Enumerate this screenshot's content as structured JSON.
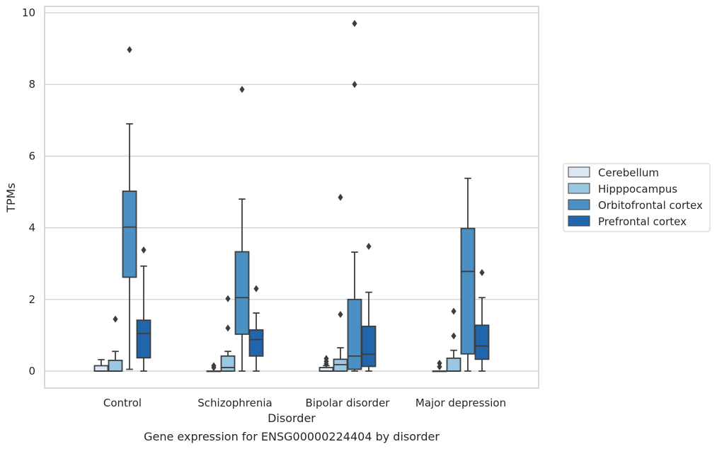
{
  "caption": "Gene expression for ENSG00000224404 by disorder",
  "chart_data": {
    "type": "box",
    "title": "",
    "xlabel": "Disorder",
    "ylabel": "TPMs",
    "ylim": [
      -0.45,
      10.2
    ],
    "yticks": [
      0,
      2,
      4,
      6,
      8,
      10
    ],
    "grid": "horizontal",
    "legend_position": "right",
    "categories": [
      "Control",
      "Schizophrenia",
      "Bipolar disorder",
      "Major depression"
    ],
    "series": [
      {
        "name": "Cerebellum",
        "color": "#dbe8f4",
        "boxes": [
          {
            "q1": 0.0,
            "median": 0.0,
            "q3": 0.15,
            "whisker_low": 0.0,
            "whisker_high": 0.32,
            "outliers": []
          },
          {
            "q1": 0.0,
            "median": 0.0,
            "q3": 0.0,
            "whisker_low": 0.0,
            "whisker_high": 0.0,
            "outliers": [
              0.1,
              0.15
            ]
          },
          {
            "q1": 0.0,
            "median": 0.0,
            "q3": 0.1,
            "whisker_low": 0.0,
            "whisker_high": 0.15,
            "outliers": [
              0.2,
              0.27,
              0.35
            ]
          },
          {
            "q1": 0.0,
            "median": 0.0,
            "q3": 0.0,
            "whisker_low": 0.0,
            "whisker_high": 0.0,
            "outliers": [
              0.12,
              0.22
            ]
          }
        ]
      },
      {
        "name": "Hipppocampus",
        "color": "#9ac8e0",
        "boxes": [
          {
            "q1": 0.0,
            "median": 0.0,
            "q3": 0.3,
            "whisker_low": 0.0,
            "whisker_high": 0.55,
            "outliers": [
              1.45
            ]
          },
          {
            "q1": 0.0,
            "median": 0.1,
            "q3": 0.42,
            "whisker_low": 0.0,
            "whisker_high": 0.55,
            "outliers": [
              1.2,
              2.02
            ]
          },
          {
            "q1": 0.0,
            "median": 0.18,
            "q3": 0.33,
            "whisker_low": 0.0,
            "whisker_high": 0.65,
            "outliers": [
              1.58,
              4.85
            ]
          },
          {
            "q1": 0.0,
            "median": 0.0,
            "q3": 0.36,
            "whisker_low": 0.0,
            "whisker_high": 0.58,
            "outliers": [
              0.98,
              1.67
            ]
          }
        ]
      },
      {
        "name": "Orbitofrontal cortex",
        "color": "#4a90c2",
        "boxes": [
          {
            "q1": 2.62,
            "median": 4.02,
            "q3": 5.02,
            "whisker_low": 0.05,
            "whisker_high": 6.9,
            "outliers": [
              8.97
            ]
          },
          {
            "q1": 1.03,
            "median": 2.05,
            "q3": 3.33,
            "whisker_low": 0.0,
            "whisker_high": 4.8,
            "outliers": [
              7.86
            ]
          },
          {
            "q1": 0.05,
            "median": 0.42,
            "q3": 2.0,
            "whisker_low": 0.0,
            "whisker_high": 3.32,
            "outliers": [
              8.0,
              9.7
            ]
          },
          {
            "q1": 0.48,
            "median": 2.78,
            "q3": 3.98,
            "whisker_low": 0.0,
            "whisker_high": 5.38,
            "outliers": []
          }
        ]
      },
      {
        "name": "Prefrontal cortex",
        "color": "#2166ac",
        "boxes": [
          {
            "q1": 0.37,
            "median": 1.05,
            "q3": 1.42,
            "whisker_low": 0.0,
            "whisker_high": 2.93,
            "outliers": [
              3.38
            ]
          },
          {
            "q1": 0.42,
            "median": 0.88,
            "q3": 1.15,
            "whisker_low": 0.0,
            "whisker_high": 1.62,
            "outliers": [
              2.3
            ]
          },
          {
            "q1": 0.13,
            "median": 0.47,
            "q3": 1.25,
            "whisker_low": 0.0,
            "whisker_high": 2.2,
            "outliers": [
              3.48
            ]
          },
          {
            "q1": 0.33,
            "median": 0.7,
            "q3": 1.28,
            "whisker_low": 0.0,
            "whisker_high": 2.05,
            "outliers": [
              2.75
            ]
          }
        ]
      }
    ]
  }
}
